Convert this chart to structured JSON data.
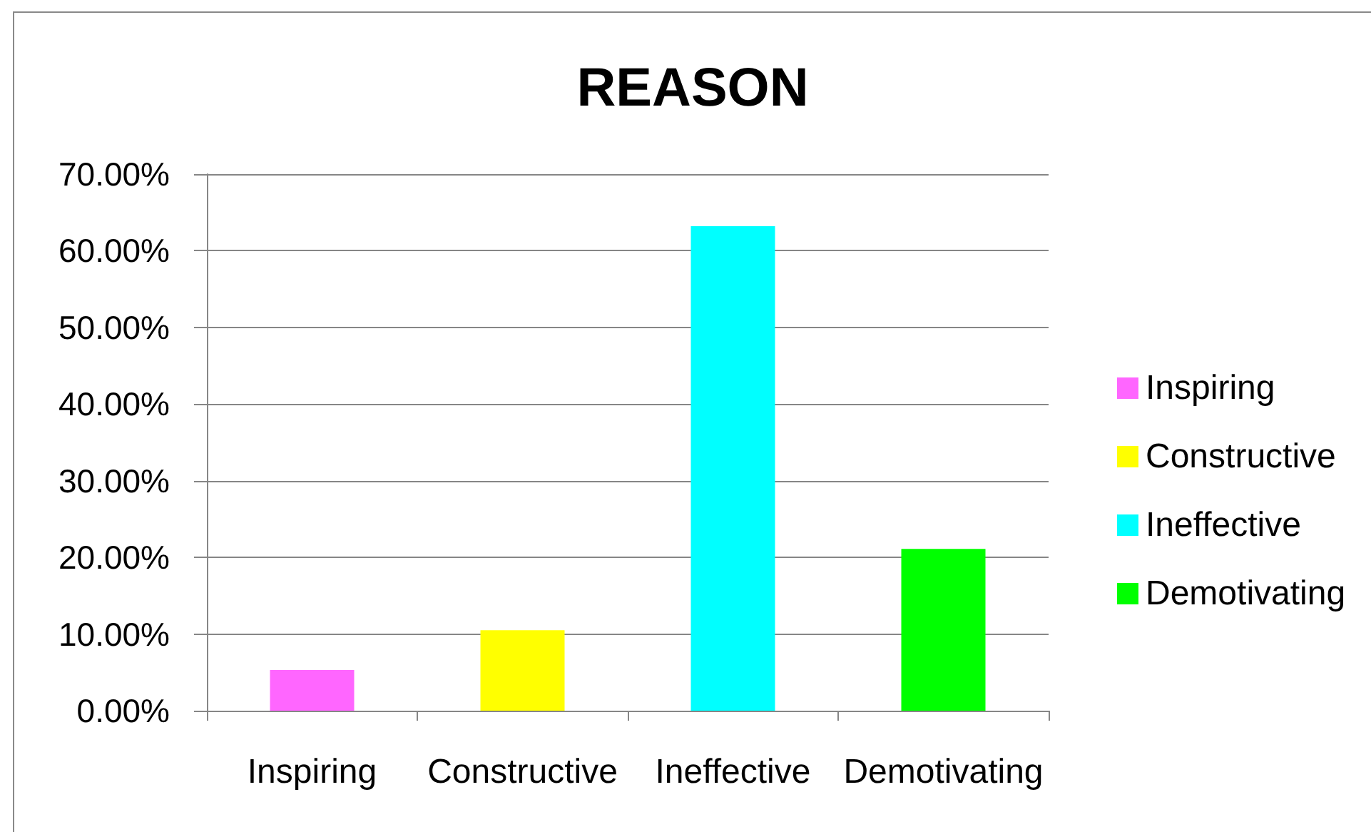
{
  "chart_data": {
    "type": "bar",
    "title": "REASON",
    "categories": [
      "Inspiring",
      "Constructive",
      "Ineffective",
      "Demotivating"
    ],
    "series": [
      {
        "name": "Inspiring",
        "color": "#ff66ff",
        "values": [
          5.3,
          null,
          null,
          null
        ]
      },
      {
        "name": "Constructive",
        "color": "#ffff00",
        "values": [
          null,
          10.5,
          null,
          null
        ]
      },
      {
        "name": "Ineffective",
        "color": "#00ffff",
        "values": [
          null,
          null,
          63.2,
          null
        ]
      },
      {
        "name": "Demotivating",
        "color": "#00ff00",
        "values": [
          null,
          null,
          null,
          21.1
        ]
      }
    ],
    "ylim": [
      0,
      70
    ],
    "yticks": [
      {
        "value": 0,
        "label": "0.00%"
      },
      {
        "value": 10,
        "label": "10.00%"
      },
      {
        "value": 20,
        "label": "20.00%"
      },
      {
        "value": 30,
        "label": "30.00%"
      },
      {
        "value": 40,
        "label": "40.00%"
      },
      {
        "value": 50,
        "label": "50.00%"
      },
      {
        "value": 60,
        "label": "60.00%"
      },
      {
        "value": 70,
        "label": "70.00%"
      }
    ],
    "grid": "y",
    "legend": "right"
  }
}
